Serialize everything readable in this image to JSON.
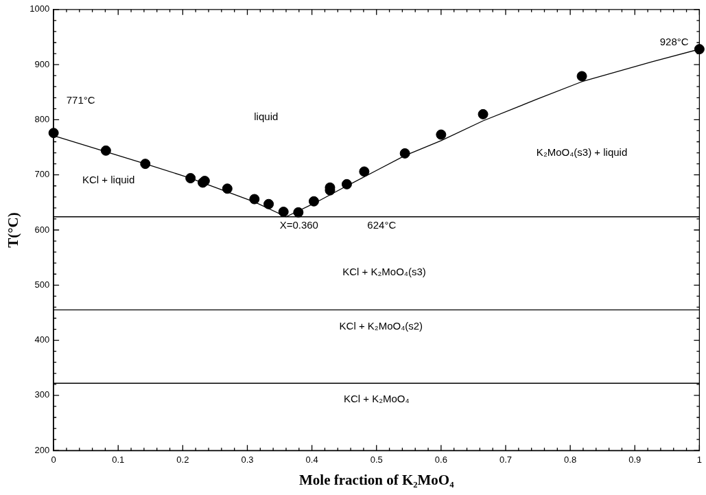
{
  "chart_data": {
    "type": "scatter",
    "xlabel": "Mole fraction of K₂MoO₄",
    "ylabel": "T(°C)",
    "xlim": [
      0,
      1
    ],
    "ylim": [
      200,
      1000
    ],
    "xticks": [
      0,
      {
        "value": 0.02,
        "label": null
      },
      {
        "value": 0.04,
        "label": null
      },
      {
        "value": 0.06,
        "label": null
      },
      {
        "value": 0.08,
        "label": null
      },
      0.1,
      {
        "value": 0.12,
        "label": null
      },
      {
        "value": 0.14,
        "label": null
      },
      {
        "value": 0.16,
        "label": null
      },
      {
        "value": 0.18,
        "label": null
      },
      0.2,
      {
        "value": 0.22,
        "label": null
      },
      {
        "value": 0.24,
        "label": null
      },
      {
        "value": 0.26,
        "label": null
      },
      {
        "value": 0.28,
        "label": null
      },
      0.3,
      {
        "value": 0.32,
        "label": null
      },
      {
        "value": 0.34,
        "label": null
      },
      {
        "value": 0.36,
        "label": null
      },
      {
        "value": 0.38,
        "label": null
      },
      0.4,
      {
        "value": 0.42,
        "label": null
      },
      {
        "value": 0.44,
        "label": null
      },
      {
        "value": 0.46,
        "label": null
      },
      {
        "value": 0.48,
        "label": null
      },
      0.5,
      {
        "value": 0.52,
        "label": null
      },
      {
        "value": 0.54,
        "label": null
      },
      {
        "value": 0.56,
        "label": null
      },
      {
        "value": 0.58,
        "label": null
      },
      0.6,
      {
        "value": 0.62,
        "label": null
      },
      {
        "value": 0.64,
        "label": null
      },
      {
        "value": 0.66,
        "label": null
      },
      {
        "value": 0.68,
        "label": null
      },
      0.7,
      {
        "value": 0.72,
        "label": null
      },
      {
        "value": 0.74,
        "label": null
      },
      {
        "value": 0.76,
        "label": null
      },
      {
        "value": 0.78,
        "label": null
      },
      0.8,
      {
        "value": 0.82,
        "label": null
      },
      {
        "value": 0.84,
        "label": null
      },
      {
        "value": 0.86,
        "label": null
      },
      {
        "value": 0.88,
        "label": null
      },
      0.9,
      {
        "value": 0.92,
        "label": null
      },
      {
        "value": 0.94,
        "label": null
      },
      {
        "value": 0.96,
        "label": null
      },
      {
        "value": 0.98,
        "label": null
      },
      1
    ],
    "yticks": [
      200,
      {
        "value": 220,
        "label": null
      },
      {
        "value": 240,
        "label": null
      },
      {
        "value": 260,
        "label": null
      },
      {
        "value": 280,
        "label": null
      },
      300,
      {
        "value": 320,
        "label": null
      },
      {
        "value": 340,
        "label": null
      },
      {
        "value": 360,
        "label": null
      },
      {
        "value": 380,
        "label": null
      },
      400,
      {
        "value": 420,
        "label": null
      },
      {
        "value": 440,
        "label": null
      },
      {
        "value": 460,
        "label": null
      },
      {
        "value": 480,
        "label": null
      },
      500,
      {
        "value": 520,
        "label": null
      },
      {
        "value": 540,
        "label": null
      },
      {
        "value": 560,
        "label": null
      },
      {
        "value": 580,
        "label": null
      },
      600,
      {
        "value": 620,
        "label": null
      },
      {
        "value": 640,
        "label": null
      },
      {
        "value": 660,
        "label": null
      },
      {
        "value": 680,
        "label": null
      },
      700,
      {
        "value": 720,
        "label": null
      },
      {
        "value": 740,
        "label": null
      },
      {
        "value": 760,
        "label": null
      },
      {
        "value": 780,
        "label": null
      },
      800,
      {
        "value": 820,
        "label": null
      },
      {
        "value": 840,
        "label": null
      },
      {
        "value": 860,
        "label": null
      },
      {
        "value": 880,
        "label": null
      },
      900,
      {
        "value": 920,
        "label": null
      },
      {
        "value": 940,
        "label": null
      },
      {
        "value": 960,
        "label": null
      },
      {
        "value": 980,
        "label": null
      },
      1000
    ],
    "grid": false,
    "legend": false,
    "series": [
      {
        "type": "scatter",
        "color": "#000000",
        "marker": "circle",
        "x": [
          0,
          0.081,
          0.142,
          0.212,
          0.231,
          0.234,
          0.269,
          0.311,
          0.333,
          0.356,
          0.379,
          0.403,
          0.428,
          0.428,
          0.454,
          0.481,
          0.544,
          0.6,
          0.665,
          0.818,
          1
        ],
        "values": [
          776,
          744,
          720,
          694,
          686,
          689,
          675,
          656,
          647,
          633,
          632,
          652,
          672,
          677,
          683,
          706,
          739,
          773,
          810,
          879,
          928
        ]
      },
      {
        "type": "line",
        "color": "#000000",
        "marker": "none",
        "x": [
          0,
          0.142,
          0.212,
          0.311,
          0.36,
          0.403,
          0.454,
          0.5,
          0.544,
          0.6,
          0.665,
          0.75,
          0.818,
          0.926,
          1
        ],
        "values": [
          771,
          720,
          694,
          651,
          624,
          648,
          680,
          708,
          735,
          762,
          798,
          838,
          869,
          905,
          928
        ]
      }
    ],
    "ref_lines": [
      {
        "axis": "y",
        "value": 624,
        "color": "#000000"
      },
      {
        "axis": "y",
        "value": 455,
        "color": "#000000"
      },
      {
        "axis": "y",
        "value": 322,
        "color": "#000000"
      }
    ],
    "annotations": [
      "771°C",
      "liquid",
      "KCl + liquid",
      "X=0.360",
      "624°C",
      "928°C",
      "K₂MoO₄(s3) + liquid",
      "KCl + K₂MoO₄(s3)",
      "KCl + K₂MoO₄(s2)",
      "KCl + K₂MoO₄"
    ]
  }
}
